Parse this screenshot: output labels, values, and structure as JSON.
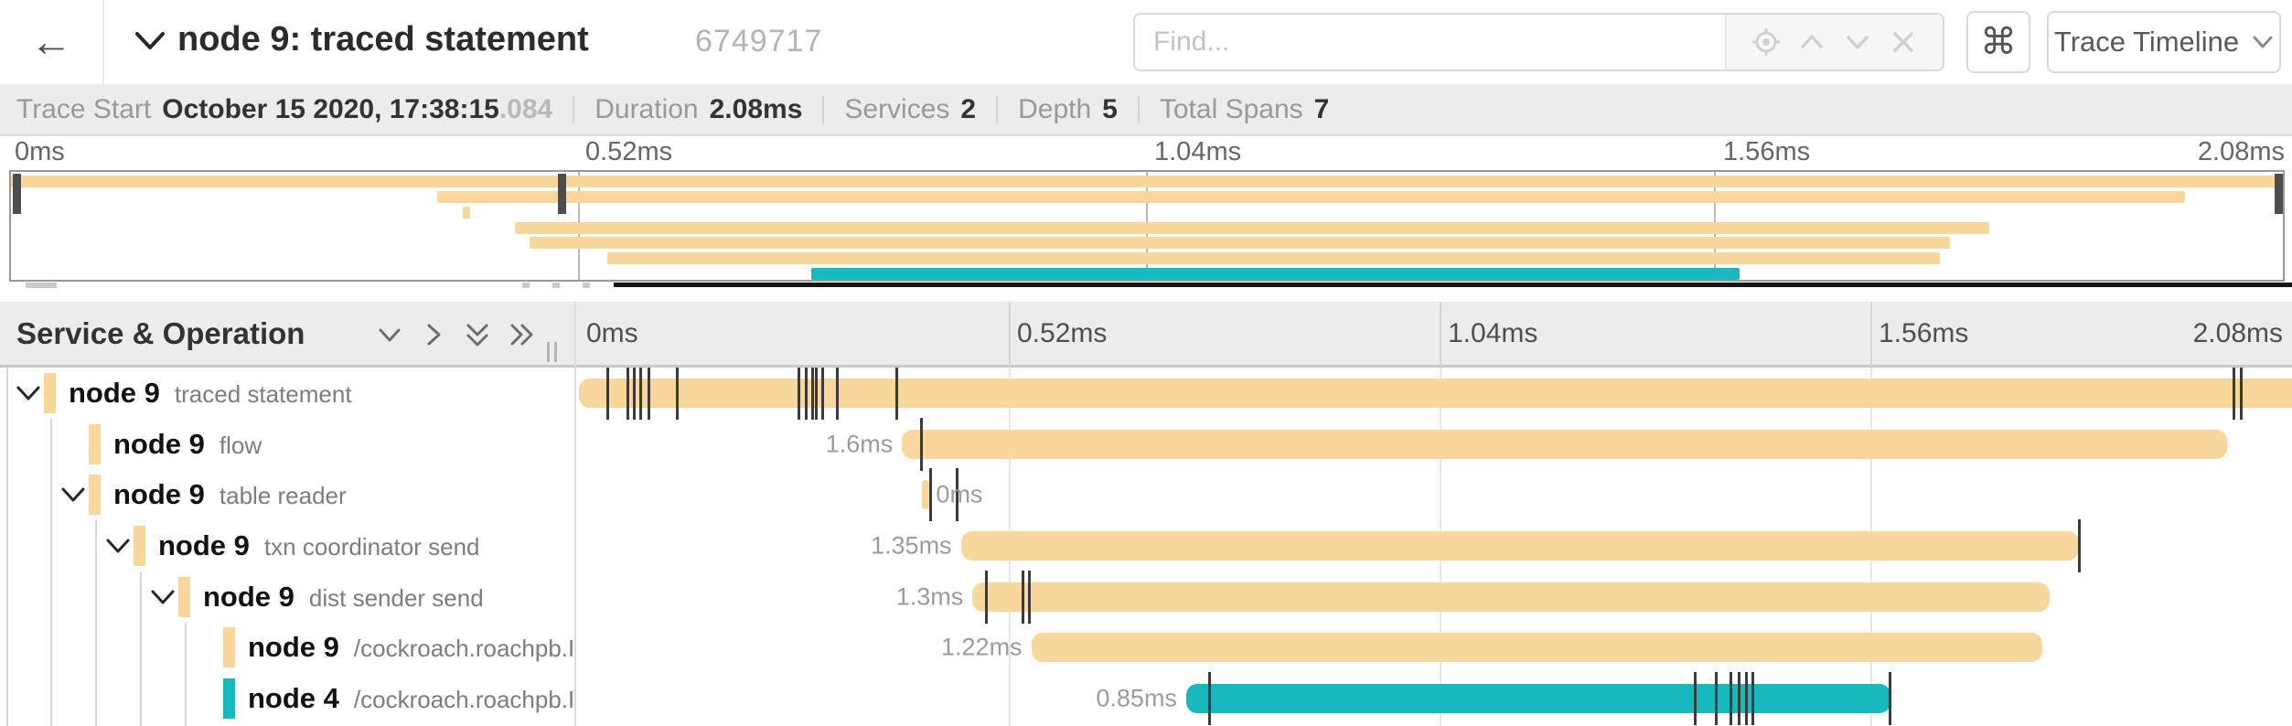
{
  "header": {
    "back_label": "←",
    "title": "node 9: traced statement",
    "trace_id": "6749717",
    "find_placeholder": "Find...",
    "shortcuts_label": "⌘",
    "view_selector_label": "Trace Timeline"
  },
  "summary": {
    "items": [
      {
        "label": "Trace Start",
        "value": "October 15 2020, 17:38:15",
        "suffix": ".084"
      },
      {
        "label": "Duration",
        "value": "2.08ms"
      },
      {
        "label": "Services",
        "value": "2"
      },
      {
        "label": "Depth",
        "value": "5"
      },
      {
        "label": "Total Spans",
        "value": "7"
      }
    ]
  },
  "timeline": {
    "left_header": "Service & Operation",
    "axis_ticks": [
      "0ms",
      "0.52ms",
      "1.04ms",
      "1.56ms",
      "2.08ms"
    ],
    "grid_times_ms": [
      0.52,
      1.04,
      1.56
    ],
    "total_ms": 2.08,
    "colors": {
      "default_span": "#F7D79C",
      "remote_span": "#17B8BE",
      "log_mark": "#3b3b3b"
    },
    "spans": [
      {
        "service": "node 9",
        "operation": "traced statement",
        "depth": 0,
        "expander": true,
        "color": "#F7D79C",
        "start_ms": 0,
        "duration_ms": 2.08,
        "duration_label": "",
        "marks_ms": [
          0.035,
          0.059,
          0.067,
          0.075,
          0.084,
          0.119,
          0.266,
          0.274,
          0.282,
          0.287,
          0.294,
          0.312,
          0.384,
          1.998,
          2.007
        ]
      },
      {
        "service": "node 9",
        "operation": "flow",
        "depth": 1,
        "expander": false,
        "color": "#F7D79C",
        "start_ms": 0.39,
        "duration_ms": 1.6,
        "duration_label": "1.6ms",
        "marks_ms": [
          0.413
        ]
      },
      {
        "service": "node 9",
        "operation": "table reader",
        "depth": 1,
        "expander": true,
        "color": "#F7D79C",
        "start_ms": 0.414,
        "duration_ms": 0.006,
        "duration_label": "0ms",
        "label_side": "right",
        "marks_ms": [
          0.424,
          0.456
        ]
      },
      {
        "service": "node 9",
        "operation": "txn coordinator send",
        "depth": 2,
        "expander": true,
        "color": "#F7D79C",
        "start_ms": 0.461,
        "duration_ms": 1.35,
        "duration_label": "1.35ms",
        "marks_ms": [
          1.811
        ]
      },
      {
        "service": "node 9",
        "operation": "dist sender send",
        "depth": 3,
        "expander": true,
        "color": "#F7D79C",
        "start_ms": 0.475,
        "duration_ms": 1.3,
        "duration_label": "1.3ms",
        "marks_ms": [
          0.492,
          0.536,
          0.544
        ]
      },
      {
        "service": "node 9",
        "operation": "/cockroach.roachpb.I…",
        "depth": 4,
        "expander": false,
        "color": "#F7D79C",
        "start_ms": 0.546,
        "duration_ms": 1.22,
        "duration_label": "1.22ms",
        "marks_ms": []
      },
      {
        "service": "node 4",
        "operation": "/cockroach.roachpb.I…",
        "depth": 4,
        "expander": false,
        "color": "#17B8BE",
        "start_ms": 0.733,
        "duration_ms": 0.85,
        "duration_label": "0.85ms",
        "marks_ms": [
          0.761,
          1.348,
          1.373,
          1.391,
          1.4,
          1.409,
          1.417,
          1.583
        ]
      }
    ]
  }
}
